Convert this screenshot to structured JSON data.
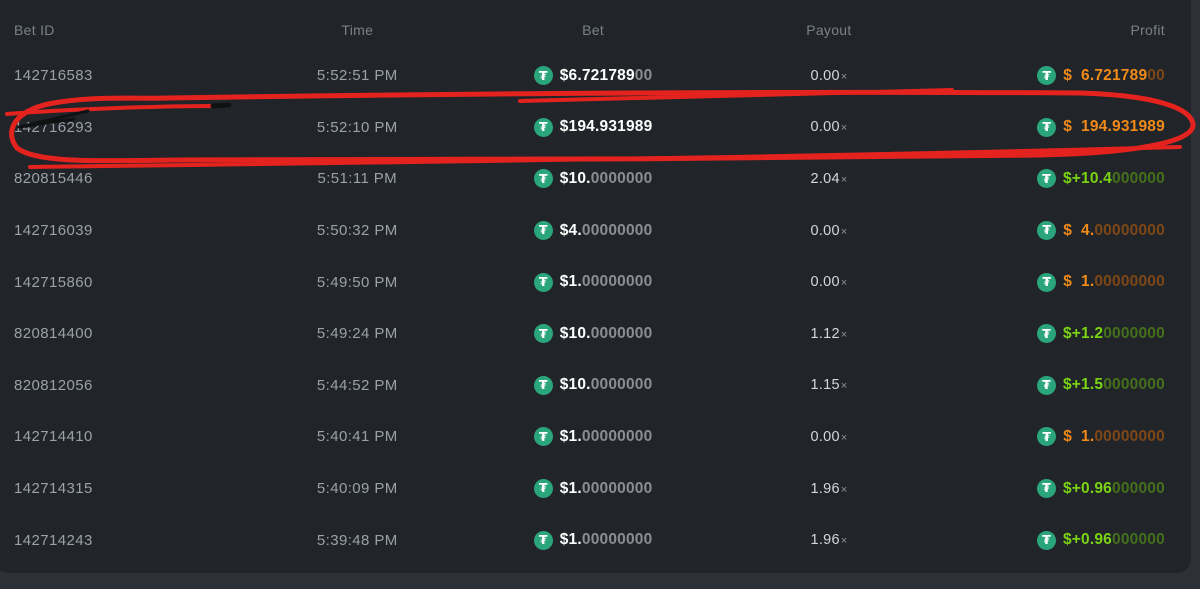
{
  "table": {
    "columns": [
      "Bet ID",
      "Time",
      "Bet",
      "Payout",
      "Profit"
    ],
    "mult_symbol": "×",
    "currency": {
      "name": "tether-usdt",
      "symbol": "₮"
    },
    "rows": [
      {
        "bet_id": "142716583",
        "time": "5:52:51 PM",
        "bet_main": "$6.721789",
        "bet_dim": "00",
        "payout": "0.00",
        "outcome": "loss",
        "profit_main": "$  6.721789",
        "profit_dim": "00"
      },
      {
        "bet_id": "142716293",
        "time": "5:52:10 PM",
        "bet_main": "$194.931989",
        "bet_dim": "",
        "payout": "0.00",
        "outcome": "loss",
        "profit_main": "$  194.931989",
        "profit_dim": ""
      },
      {
        "bet_id": "820815446",
        "time": "5:51:11 PM",
        "bet_main": "$10.",
        "bet_dim": "0000000",
        "payout": "2.04",
        "outcome": "win",
        "profit_main": "$+10.4",
        "profit_dim": "000000"
      },
      {
        "bet_id": "142716039",
        "time": "5:50:32 PM",
        "bet_main": "$4.",
        "bet_dim": "00000000",
        "payout": "0.00",
        "outcome": "loss",
        "profit_main": "$  4.",
        "profit_dim": "00000000"
      },
      {
        "bet_id": "142715860",
        "time": "5:49:50 PM",
        "bet_main": "$1.",
        "bet_dim": "00000000",
        "payout": "0.00",
        "outcome": "loss",
        "profit_main": "$  1.",
        "profit_dim": "00000000"
      },
      {
        "bet_id": "820814400",
        "time": "5:49:24 PM",
        "bet_main": "$10.",
        "bet_dim": "0000000",
        "payout": "1.12",
        "outcome": "win",
        "profit_main": "$+1.2",
        "profit_dim": "0000000"
      },
      {
        "bet_id": "820812056",
        "time": "5:44:52 PM",
        "bet_main": "$10.",
        "bet_dim": "0000000",
        "payout": "1.15",
        "outcome": "win",
        "profit_main": "$+1.5",
        "profit_dim": "0000000"
      },
      {
        "bet_id": "142714410",
        "time": "5:40:41 PM",
        "bet_main": "$1.",
        "bet_dim": "00000000",
        "payout": "0.00",
        "outcome": "loss",
        "profit_main": "$  1.",
        "profit_dim": "00000000"
      },
      {
        "bet_id": "142714315",
        "time": "5:40:09 PM",
        "bet_main": "$1.",
        "bet_dim": "00000000",
        "payout": "1.96",
        "outcome": "win",
        "profit_main": "$+0.96",
        "profit_dim": "000000"
      },
      {
        "bet_id": "142714243",
        "time": "5:39:48 PM",
        "bet_main": "$1.",
        "bet_dim": "00000000",
        "payout": "1.96",
        "outcome": "win",
        "profit_main": "$+0.96",
        "profit_dim": "000000"
      }
    ]
  },
  "annotation": {
    "type": "hand-drawn-circle",
    "target_bet_id": "142716293",
    "red": "#e4231f",
    "black": "#101113"
  },
  "colors": {
    "page_bg": "#2d3037",
    "panel_bg": "#212429",
    "header_text": "#7b818a",
    "row_text": "#9aa1a9",
    "amount_white": "#ffffff",
    "amount_dim": "#8a8e93",
    "payout_text": "#d3d6da",
    "payout_mult": "#8f9397",
    "orange": "#f08a18",
    "orange_dim": "#7d4716",
    "green": "#7ad414",
    "green_dim": "#44701b",
    "tether": "#2aa57c"
  }
}
